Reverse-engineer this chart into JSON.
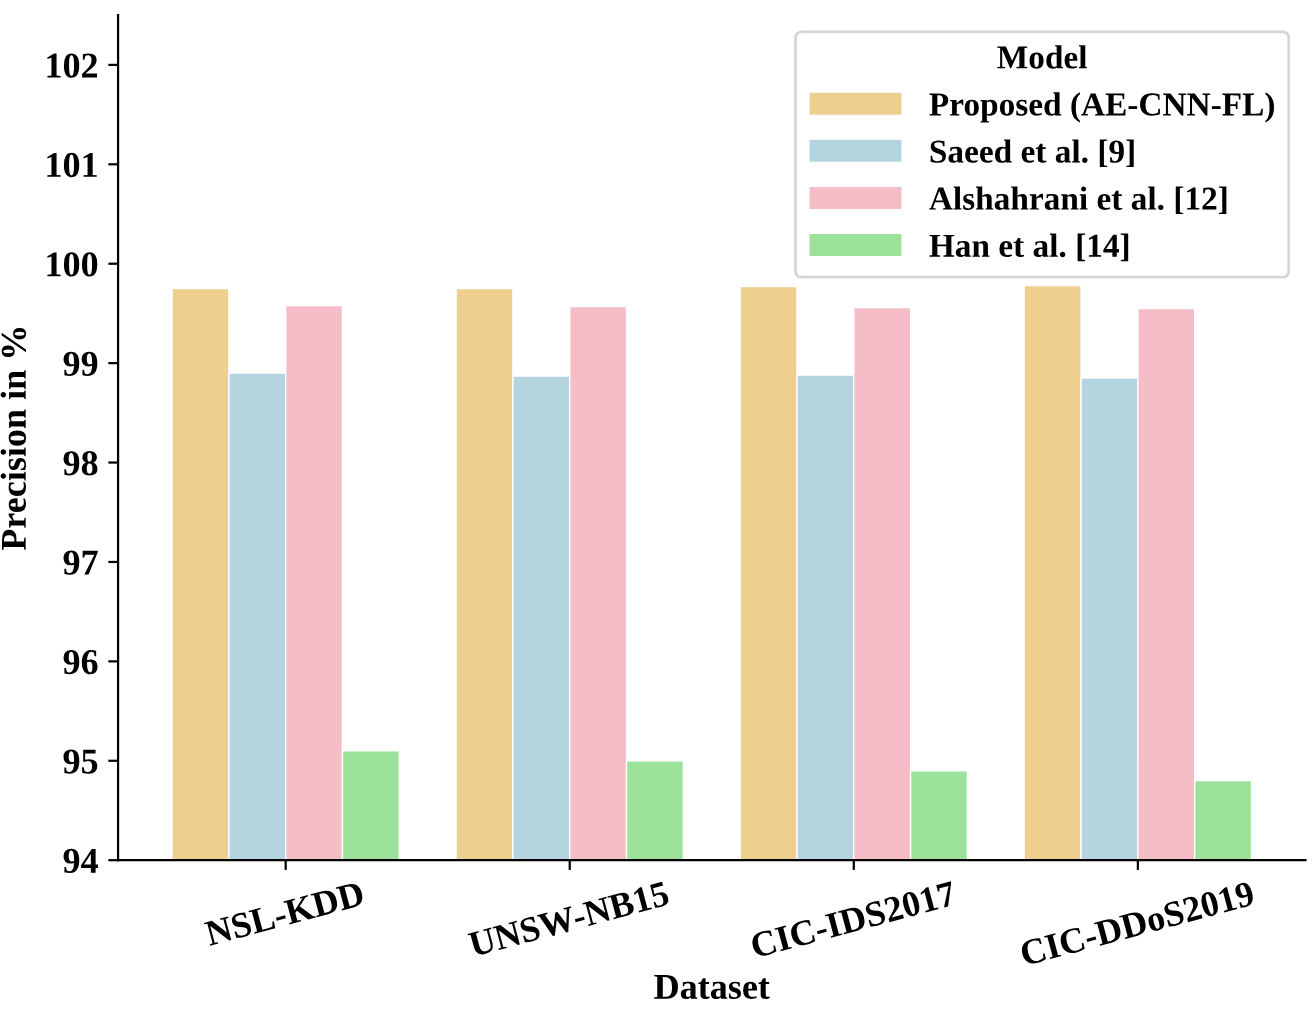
{
  "chart_data": {
    "type": "bar",
    "xlabel": "Dataset",
    "ylabel": "Precision in %",
    "legend_title": "Model",
    "legend": "top right",
    "categories": [
      "NSL-KDD",
      "UNSW-NB15",
      "CIC-IDS2017",
      "CIC-DDoS2019"
    ],
    "series": [
      {
        "name": "Proposed (AE-CNN-FL)",
        "color": "#eecf8e",
        "values": [
          99.75,
          99.75,
          99.77,
          99.78
        ]
      },
      {
        "name": "Saeed et al. [9]",
        "color": "#b4d5e0",
        "values": [
          98.9,
          98.87,
          98.88,
          98.85
        ]
      },
      {
        "name": "Alshahrani et al. [12]",
        "color": "#f5bdc8",
        "values": [
          99.58,
          99.57,
          99.56,
          99.55
        ]
      },
      {
        "name": "Han et al. [14]",
        "color": "#9de29a",
        "values": [
          95.1,
          95.0,
          94.9,
          94.8
        ]
      }
    ],
    "ylim": [
      94,
      102.5
    ],
    "yticks": [
      94,
      95,
      96,
      97,
      98,
      99,
      100,
      101,
      102
    ],
    "grid": false
  }
}
